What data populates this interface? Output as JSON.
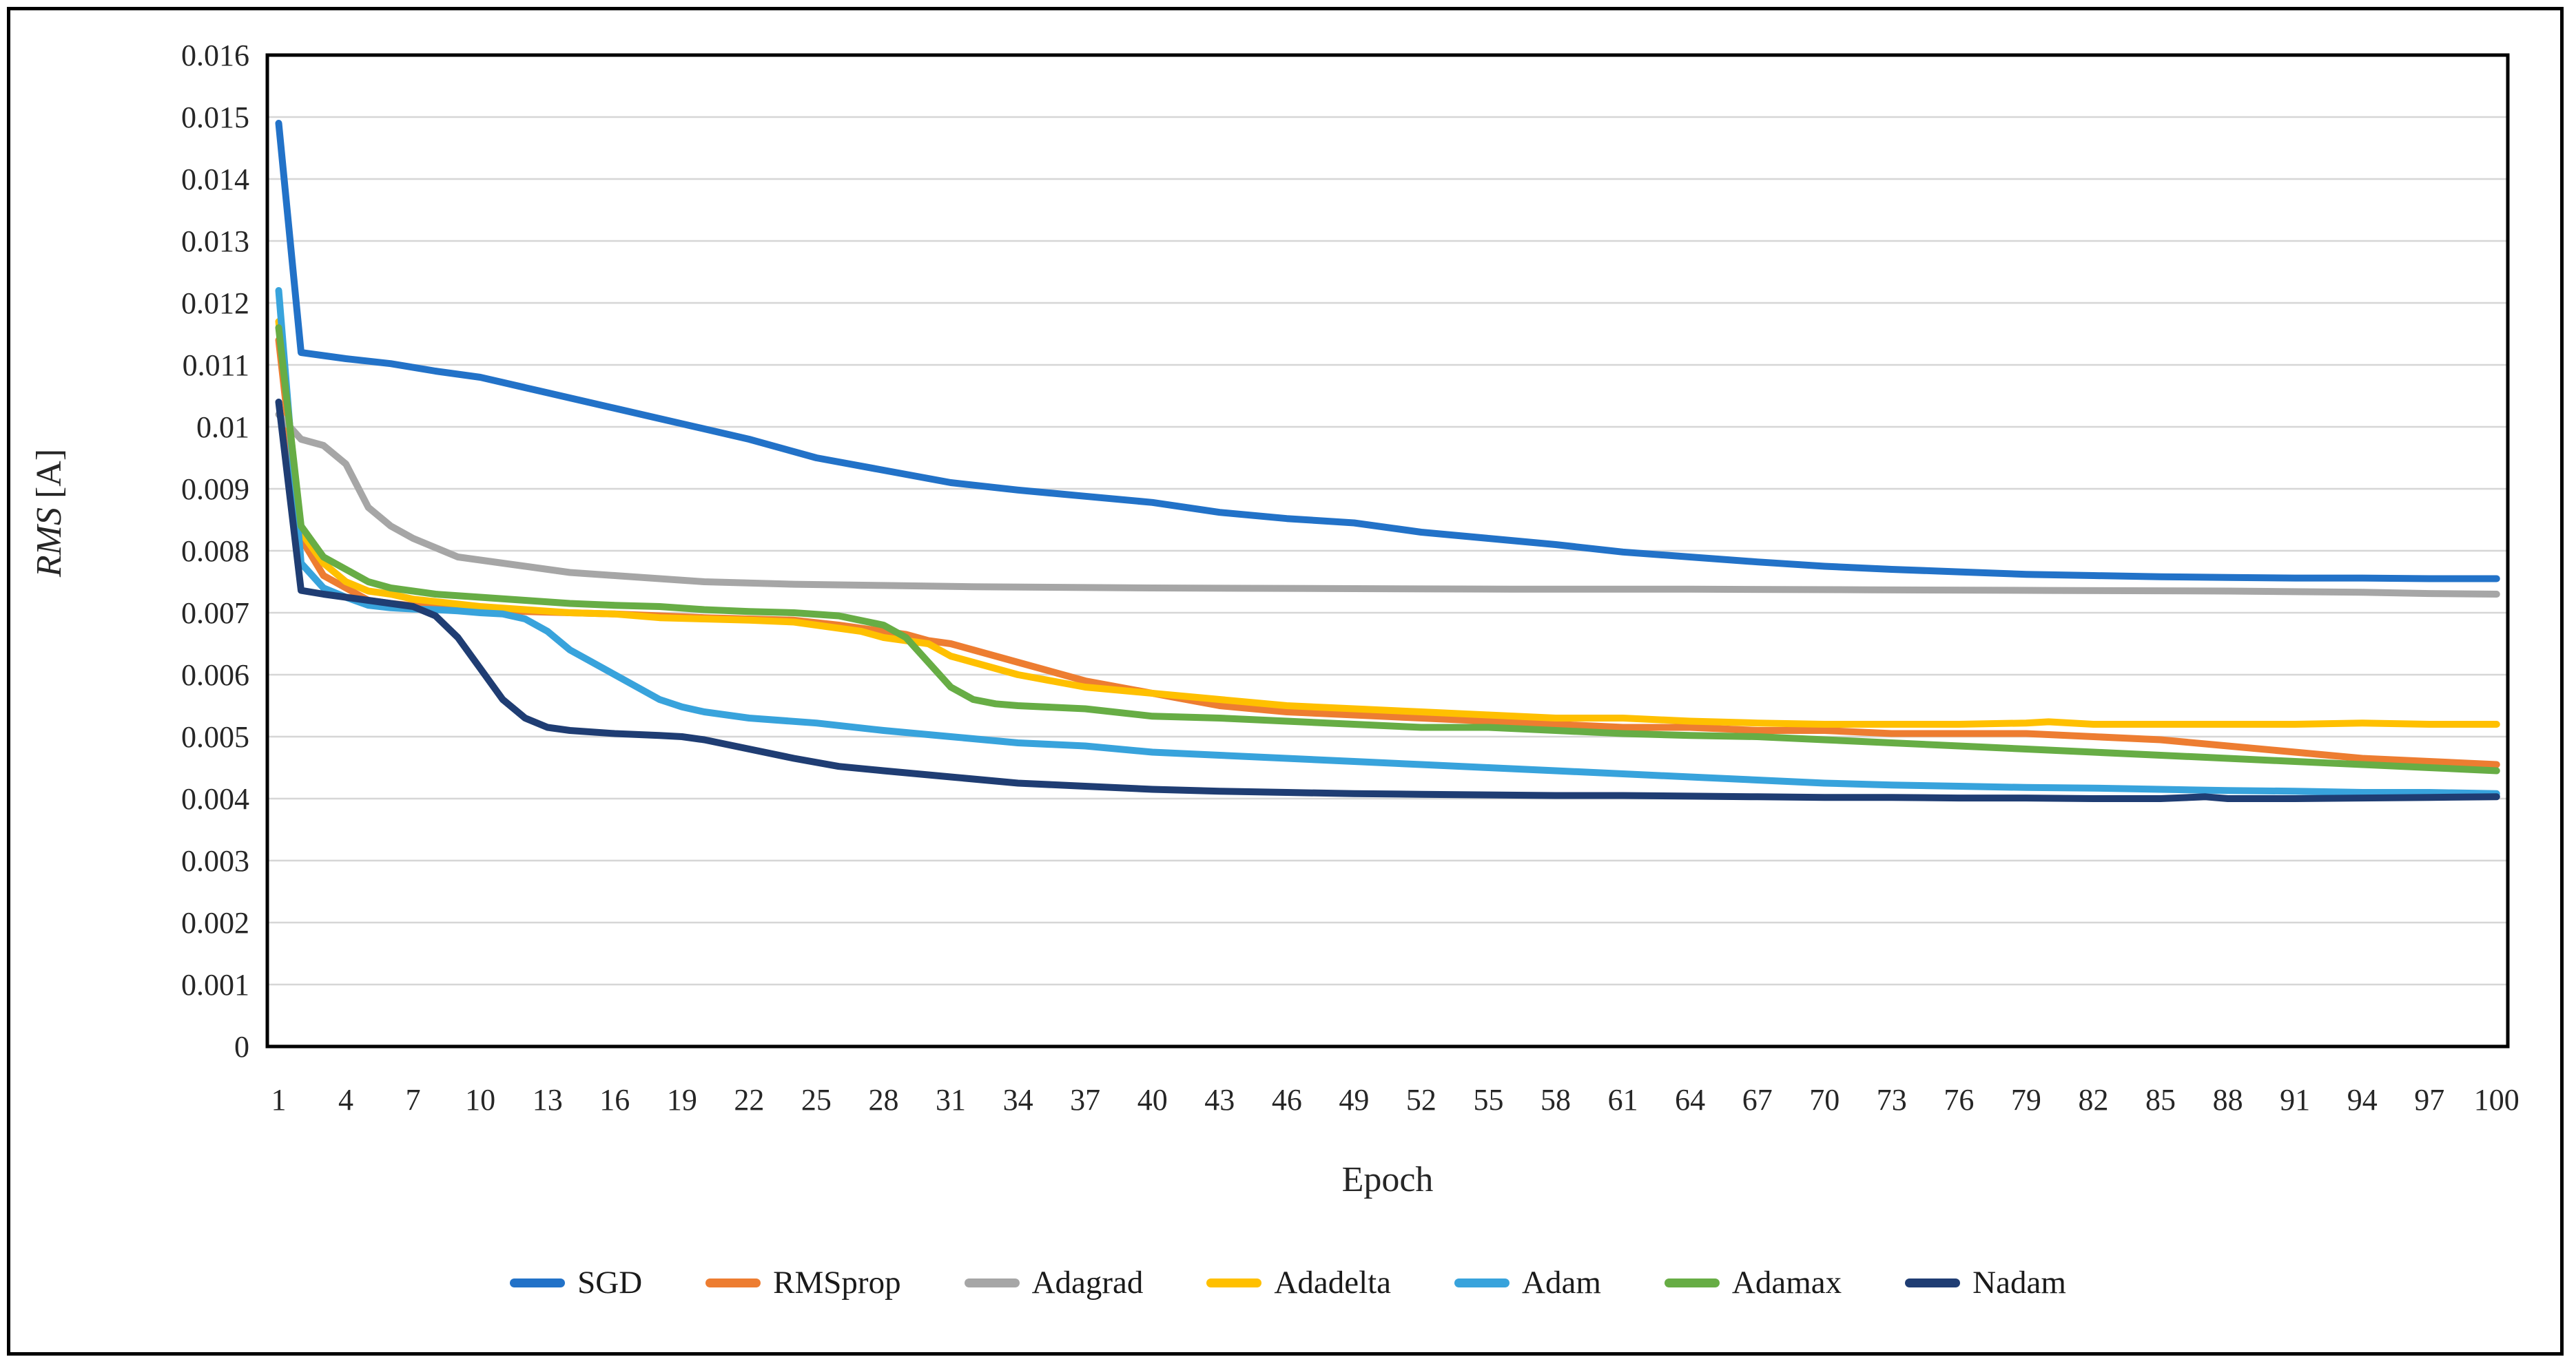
{
  "figure": {
    "background": "#ffffff",
    "border_color": "#000000",
    "gridline_color": "#d6d6d6",
    "axis_frame_color": "#000000"
  },
  "axes": {
    "ylabel_main": "RMS",
    "ylabel_unit": " [A]",
    "xlabel": "Epoch",
    "ytick_labels": [
      "0.016",
      "0.015",
      "0.014",
      "0.013",
      "0.012",
      "0.011",
      "0.01",
      "0.009",
      "0.008",
      "0.007",
      "0.006",
      "0.005",
      "0.004",
      "0.003",
      "0.002",
      "0.001",
      "0"
    ],
    "xtick_labels": [
      "1",
      "4",
      "7",
      "10",
      "13",
      "16",
      "19",
      "22",
      "25",
      "28",
      "31",
      "34",
      "37",
      "40",
      "43",
      "46",
      "49",
      "52",
      "55",
      "58",
      "61",
      "64",
      "67",
      "70",
      "73",
      "76",
      "79",
      "82",
      "85",
      "88",
      "91",
      "94",
      "97",
      "100"
    ]
  },
  "chart_data": {
    "type": "line",
    "title": "",
    "xlabel": "Epoch",
    "ylabel": "RMS [A]",
    "xlim": [
      1,
      100
    ],
    "ylim": [
      0,
      0.016
    ],
    "ytick_step": 0.001,
    "xtick_step": 3,
    "grid": "horizontal",
    "legend_position": "bottom",
    "series": [
      {
        "name": "SGD",
        "color": "#2272c8",
        "points": [
          [
            1,
            0.0149
          ],
          [
            2,
            0.0112
          ],
          [
            3,
            0.01115
          ],
          [
            4,
            0.0111
          ],
          [
            6,
            0.01102
          ],
          [
            8,
            0.0109
          ],
          [
            10,
            0.0108
          ],
          [
            13,
            0.01055
          ],
          [
            16,
            0.0103
          ],
          [
            19,
            0.01005
          ],
          [
            22,
            0.0098
          ],
          [
            25,
            0.0095
          ],
          [
            28,
            0.0093
          ],
          [
            31,
            0.0091
          ],
          [
            34,
            0.00898
          ],
          [
            37,
            0.00888
          ],
          [
            40,
            0.00878
          ],
          [
            43,
            0.00862
          ],
          [
            46,
            0.00852
          ],
          [
            49,
            0.00845
          ],
          [
            52,
            0.0083
          ],
          [
            55,
            0.0082
          ],
          [
            58,
            0.0081
          ],
          [
            61,
            0.00798
          ],
          [
            64,
            0.0079
          ],
          [
            67,
            0.00782
          ],
          [
            70,
            0.00775
          ],
          [
            73,
            0.0077
          ],
          [
            76,
            0.00766
          ],
          [
            79,
            0.00762
          ],
          [
            82,
            0.0076
          ],
          [
            85,
            0.00758
          ],
          [
            88,
            0.00757
          ],
          [
            91,
            0.00756
          ],
          [
            94,
            0.00756
          ],
          [
            97,
            0.00755
          ],
          [
            100,
            0.00755
          ]
        ]
      },
      {
        "name": "RMSprop",
        "color": "#ed7d31",
        "points": [
          [
            1,
            0.0114
          ],
          [
            2,
            0.0082
          ],
          [
            3,
            0.0076
          ],
          [
            4,
            0.0074
          ],
          [
            5,
            0.0072
          ],
          [
            6,
            0.00715
          ],
          [
            8,
            0.00708
          ],
          [
            10,
            0.00705
          ],
          [
            12,
            0.00702
          ],
          [
            14,
            0.007
          ],
          [
            16,
            0.00698
          ],
          [
            18,
            0.00695
          ],
          [
            20,
            0.00692
          ],
          [
            22,
            0.0069
          ],
          [
            24,
            0.00688
          ],
          [
            26,
            0.0068
          ],
          [
            28,
            0.0067
          ],
          [
            29,
            0.00665
          ],
          [
            30,
            0.00655
          ],
          [
            31,
            0.0065
          ],
          [
            32,
            0.0064
          ],
          [
            34,
            0.0062
          ],
          [
            37,
            0.0059
          ],
          [
            40,
            0.0057
          ],
          [
            43,
            0.0055
          ],
          [
            46,
            0.0054
          ],
          [
            49,
            0.00535
          ],
          [
            52,
            0.0053
          ],
          [
            55,
            0.00525
          ],
          [
            58,
            0.0052
          ],
          [
            61,
            0.00515
          ],
          [
            64,
            0.00515
          ],
          [
            67,
            0.0051
          ],
          [
            70,
            0.0051
          ],
          [
            73,
            0.00505
          ],
          [
            76,
            0.00505
          ],
          [
            79,
            0.00505
          ],
          [
            82,
            0.005
          ],
          [
            85,
            0.00495
          ],
          [
            88,
            0.00485
          ],
          [
            91,
            0.00475
          ],
          [
            94,
            0.00465
          ],
          [
            97,
            0.0046
          ],
          [
            100,
            0.00455
          ]
        ]
      },
      {
        "name": "Adagrad",
        "color": "#a6a6a6",
        "points": [
          [
            1,
            0.0102
          ],
          [
            2,
            0.0098
          ],
          [
            3,
            0.0097
          ],
          [
            4,
            0.0094
          ],
          [
            5,
            0.0087
          ],
          [
            6,
            0.0084
          ],
          [
            7,
            0.0082
          ],
          [
            8,
            0.00805
          ],
          [
            9,
            0.0079
          ],
          [
            10,
            0.00785
          ],
          [
            12,
            0.00775
          ],
          [
            14,
            0.00765
          ],
          [
            16,
            0.0076
          ],
          [
            18,
            0.00755
          ],
          [
            20,
            0.0075
          ],
          [
            24,
            0.00746
          ],
          [
            28,
            0.00744
          ],
          [
            32,
            0.00742
          ],
          [
            36,
            0.00741
          ],
          [
            40,
            0.0074
          ],
          [
            48,
            0.00739
          ],
          [
            56,
            0.00738
          ],
          [
            64,
            0.00738
          ],
          [
            72,
            0.00737
          ],
          [
            80,
            0.00736
          ],
          [
            88,
            0.00735
          ],
          [
            94,
            0.00733
          ],
          [
            97,
            0.00731
          ],
          [
            100,
            0.0073
          ]
        ]
      },
      {
        "name": "Adadelta",
        "color": "#ffc000",
        "points": [
          [
            1,
            0.0117
          ],
          [
            2,
            0.0083
          ],
          [
            3,
            0.0078
          ],
          [
            4,
            0.0075
          ],
          [
            5,
            0.00735
          ],
          [
            6,
            0.0073
          ],
          [
            7,
            0.00722
          ],
          [
            8,
            0.00718
          ],
          [
            10,
            0.0071
          ],
          [
            12,
            0.00705
          ],
          [
            14,
            0.007
          ],
          [
            16,
            0.00698
          ],
          [
            18,
            0.00692
          ],
          [
            20,
            0.0069
          ],
          [
            22,
            0.00688
          ],
          [
            24,
            0.00685
          ],
          [
            25,
            0.0068
          ],
          [
            26,
            0.00675
          ],
          [
            27,
            0.0067
          ],
          [
            28,
            0.0066
          ],
          [
            29,
            0.00655
          ],
          [
            30,
            0.0065
          ],
          [
            31,
            0.0063
          ],
          [
            32,
            0.0062
          ],
          [
            34,
            0.006
          ],
          [
            37,
            0.0058
          ],
          [
            40,
            0.0057
          ],
          [
            43,
            0.0056
          ],
          [
            46,
            0.0055
          ],
          [
            49,
            0.00545
          ],
          [
            52,
            0.0054
          ],
          [
            55,
            0.00535
          ],
          [
            58,
            0.0053
          ],
          [
            61,
            0.0053
          ],
          [
            64,
            0.00525
          ],
          [
            67,
            0.00522
          ],
          [
            70,
            0.0052
          ],
          [
            73,
            0.0052
          ],
          [
            76,
            0.0052
          ],
          [
            79,
            0.00522
          ],
          [
            80,
            0.00524
          ],
          [
            82,
            0.0052
          ],
          [
            85,
            0.0052
          ],
          [
            88,
            0.0052
          ],
          [
            91,
            0.0052
          ],
          [
            94,
            0.00522
          ],
          [
            97,
            0.0052
          ],
          [
            100,
            0.0052
          ]
        ]
      },
      {
        "name": "Adam",
        "color": "#38a3dc",
        "points": [
          [
            1,
            0.0122
          ],
          [
            2,
            0.0078
          ],
          [
            3,
            0.0074
          ],
          [
            4,
            0.00725
          ],
          [
            5,
            0.00712
          ],
          [
            6,
            0.00708
          ],
          [
            7,
            0.00706
          ],
          [
            8,
            0.00705
          ],
          [
            9,
            0.00703
          ],
          [
            10,
            0.007
          ],
          [
            11,
            0.00698
          ],
          [
            12,
            0.0069
          ],
          [
            13,
            0.0067
          ],
          [
            14,
            0.0064
          ],
          [
            15,
            0.0062
          ],
          [
            16,
            0.006
          ],
          [
            17,
            0.0058
          ],
          [
            18,
            0.0056
          ],
          [
            19,
            0.00548
          ],
          [
            20,
            0.0054
          ],
          [
            22,
            0.0053
          ],
          [
            25,
            0.00522
          ],
          [
            28,
            0.0051
          ],
          [
            31,
            0.005
          ],
          [
            34,
            0.0049
          ],
          [
            37,
            0.00485
          ],
          [
            40,
            0.00475
          ],
          [
            43,
            0.0047
          ],
          [
            46,
            0.00465
          ],
          [
            49,
            0.0046
          ],
          [
            52,
            0.00455
          ],
          [
            55,
            0.0045
          ],
          [
            58,
            0.00445
          ],
          [
            61,
            0.0044
          ],
          [
            64,
            0.00435
          ],
          [
            67,
            0.0043
          ],
          [
            70,
            0.00425
          ],
          [
            73,
            0.00422
          ],
          [
            76,
            0.0042
          ],
          [
            79,
            0.00418
          ],
          [
            82,
            0.00417
          ],
          [
            85,
            0.00415
          ],
          [
            88,
            0.00413
          ],
          [
            91,
            0.00412
          ],
          [
            94,
            0.0041
          ],
          [
            97,
            0.0041
          ],
          [
            100,
            0.00408
          ]
        ]
      },
      {
        "name": "Adamax",
        "color": "#67ad45",
        "points": [
          [
            1,
            0.0116
          ],
          [
            2,
            0.0084
          ],
          [
            3,
            0.0079
          ],
          [
            4,
            0.0077
          ],
          [
            5,
            0.0075
          ],
          [
            6,
            0.0074
          ],
          [
            7,
            0.00735
          ],
          [
            8,
            0.0073
          ],
          [
            10,
            0.00725
          ],
          [
            12,
            0.0072
          ],
          [
            14,
            0.00715
          ],
          [
            16,
            0.00712
          ],
          [
            18,
            0.0071
          ],
          [
            20,
            0.00705
          ],
          [
            22,
            0.00702
          ],
          [
            24,
            0.007
          ],
          [
            26,
            0.00695
          ],
          [
            28,
            0.0068
          ],
          [
            29,
            0.0066
          ],
          [
            30,
            0.0062
          ],
          [
            31,
            0.0058
          ],
          [
            32,
            0.0056
          ],
          [
            33,
            0.00553
          ],
          [
            34,
            0.0055
          ],
          [
            37,
            0.00545
          ],
          [
            40,
            0.00533
          ],
          [
            43,
            0.0053
          ],
          [
            46,
            0.00525
          ],
          [
            49,
            0.0052
          ],
          [
            52,
            0.00515
          ],
          [
            55,
            0.00515
          ],
          [
            58,
            0.0051
          ],
          [
            61,
            0.00505
          ],
          [
            64,
            0.00502
          ],
          [
            67,
            0.005
          ],
          [
            70,
            0.00495
          ],
          [
            73,
            0.0049
          ],
          [
            76,
            0.00485
          ],
          [
            79,
            0.0048
          ],
          [
            82,
            0.00475
          ],
          [
            85,
            0.0047
          ],
          [
            88,
            0.00465
          ],
          [
            91,
            0.0046
          ],
          [
            94,
            0.00455
          ],
          [
            97,
            0.0045
          ],
          [
            100,
            0.00445
          ]
        ]
      },
      {
        "name": "Nadam",
        "color": "#1f3d73",
        "points": [
          [
            1,
            0.0104
          ],
          [
            2,
            0.00736
          ],
          [
            3,
            0.0073
          ],
          [
            4,
            0.00725
          ],
          [
            5,
            0.0072
          ],
          [
            6,
            0.00715
          ],
          [
            7,
            0.0071
          ],
          [
            8,
            0.00695
          ],
          [
            9,
            0.0066
          ],
          [
            10,
            0.0061
          ],
          [
            11,
            0.0056
          ],
          [
            12,
            0.0053
          ],
          [
            13,
            0.00515
          ],
          [
            14,
            0.0051
          ],
          [
            16,
            0.00505
          ],
          [
            18,
            0.00502
          ],
          [
            19,
            0.005
          ],
          [
            20,
            0.00495
          ],
          [
            22,
            0.0048
          ],
          [
            24,
            0.00465
          ],
          [
            26,
            0.00452
          ],
          [
            28,
            0.00445
          ],
          [
            31,
            0.00435
          ],
          [
            34,
            0.00425
          ],
          [
            37,
            0.0042
          ],
          [
            40,
            0.00415
          ],
          [
            43,
            0.00412
          ],
          [
            46,
            0.0041
          ],
          [
            49,
            0.00408
          ],
          [
            52,
            0.00407
          ],
          [
            55,
            0.00406
          ],
          [
            58,
            0.00405
          ],
          [
            61,
            0.00405
          ],
          [
            64,
            0.00404
          ],
          [
            67,
            0.00403
          ],
          [
            70,
            0.00402
          ],
          [
            73,
            0.00402
          ],
          [
            76,
            0.00401
          ],
          [
            79,
            0.00401
          ],
          [
            82,
            0.004
          ],
          [
            85,
            0.004
          ],
          [
            87,
            0.00403
          ],
          [
            88,
            0.004
          ],
          [
            91,
            0.004
          ],
          [
            94,
            0.00401
          ],
          [
            97,
            0.00402
          ],
          [
            100,
            0.00403
          ]
        ]
      }
    ]
  }
}
